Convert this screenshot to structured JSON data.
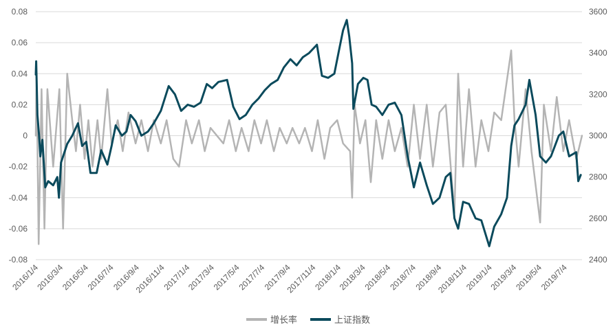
{
  "chart_data": {
    "type": "line",
    "title": "",
    "xlabel": "",
    "ylabel_left": "",
    "ylabel_right": "",
    "ylim_left": [
      -0.08,
      0.08
    ],
    "ylim_right": [
      2400,
      3600
    ],
    "yticks_left": [
      "0.08",
      "0.06",
      "0.04",
      "0.02",
      "0",
      "-0.02",
      "-0.04",
      "-0.06",
      "-0.08"
    ],
    "yticks_right": [
      "3600",
      "3400",
      "3200",
      "3000",
      "2800",
      "2600",
      "2400"
    ],
    "xticks": [
      "2016/1/4",
      "2016/3/4",
      "2016/5/4",
      "2016/7/4",
      "2016/9/4",
      "2016/11/4",
      "2017/1/4",
      "2017/3/4",
      "2017/5/4",
      "2017/7/4",
      "2017/9/4",
      "2017/11/4",
      "2018/1/4",
      "2018/3/4",
      "2018/5/4",
      "2018/7/4",
      "2018/9/4",
      "2018/11/4",
      "2019/1/4",
      "2019/3/4",
      "2019/5/4",
      "2019/7/4"
    ],
    "grid": "horizontal",
    "legend_position": "bottom",
    "series": [
      {
        "name": "增长率",
        "axis": "left",
        "color": "#b4b4b4",
        "points": [
          [
            "2016/1/4",
            0.0
          ],
          [
            "2016/1/6",
            0.04
          ],
          [
            "2016/1/11",
            -0.07
          ],
          [
            "2016/1/18",
            0.03
          ],
          [
            "2016/1/25",
            -0.06
          ],
          [
            "2016/2/1",
            0.03
          ],
          [
            "2016/2/15",
            -0.02
          ],
          [
            "2016/3/1",
            0.03
          ],
          [
            "2016/3/10",
            -0.06
          ],
          [
            "2016/3/20",
            0.04
          ],
          [
            "2016/4/1",
            0.01
          ],
          [
            "2016/4/10",
            -0.01
          ],
          [
            "2016/4/20",
            0.02
          ],
          [
            "2016/5/1",
            -0.015
          ],
          [
            "2016/5/10",
            0.01
          ],
          [
            "2016/5/20",
            -0.02
          ],
          [
            "2016/6/1",
            0.01
          ],
          [
            "2016/6/10",
            -0.015
          ],
          [
            "2016/6/25",
            0.03
          ],
          [
            "2016/7/5",
            -0.005
          ],
          [
            "2016/7/20",
            0.01
          ],
          [
            "2016/8/1",
            -0.01
          ],
          [
            "2016/8/15",
            0.015
          ],
          [
            "2016/9/1",
            -0.005
          ],
          [
            "2016/9/15",
            0.01
          ],
          [
            "2016/10/1",
            -0.01
          ],
          [
            "2016/10/15",
            0.01
          ],
          [
            "2016/11/1",
            -0.005
          ],
          [
            "2016/11/15",
            0.01
          ],
          [
            "2016/12/1",
            -0.015
          ],
          [
            "2016/12/15",
            -0.02
          ],
          [
            "2017/1/1",
            0.01
          ],
          [
            "2017/1/15",
            -0.005
          ],
          [
            "2017/2/1",
            0.01
          ],
          [
            "2017/2/15",
            -0.01
          ],
          [
            "2017/3/1",
            0.005
          ],
          [
            "2017/4/1",
            -0.005
          ],
          [
            "2017/4/15",
            0.01
          ],
          [
            "2017/5/1",
            -0.01
          ],
          [
            "2017/5/15",
            0.005
          ],
          [
            "2017/6/1",
            -0.01
          ],
          [
            "2017/6/15",
            0.01
          ],
          [
            "2017/7/1",
            -0.005
          ],
          [
            "2017/7/15",
            0.01
          ],
          [
            "2017/8/1",
            -0.01
          ],
          [
            "2017/8/15",
            0.005
          ],
          [
            "2017/9/1",
            -0.005
          ],
          [
            "2017/9/15",
            0.005
          ],
          [
            "2017/10/1",
            -0.005
          ],
          [
            "2017/10/15",
            0.005
          ],
          [
            "2017/11/1",
            -0.01
          ],
          [
            "2017/11/15",
            0.01
          ],
          [
            "2017/12/1",
            -0.015
          ],
          [
            "2017/12/15",
            0.005
          ],
          [
            "2018/1/1",
            0.01
          ],
          [
            "2018/1/15",
            -0.005
          ],
          [
            "2018/2/1",
            -0.01
          ],
          [
            "2018/2/6",
            -0.04
          ],
          [
            "2018/2/12",
            0.02
          ],
          [
            "2018/2/25",
            -0.005
          ],
          [
            "2018/3/10",
            0.01
          ],
          [
            "2018/3/23",
            -0.03
          ],
          [
            "2018/4/5",
            0.01
          ],
          [
            "2018/4/20",
            -0.015
          ],
          [
            "2018/5/5",
            0.01
          ],
          [
            "2018/5/20",
            -0.01
          ],
          [
            "2018/6/5",
            0.005
          ],
          [
            "2018/6/20",
            -0.02
          ],
          [
            "2018/7/5",
            0.02
          ],
          [
            "2018/7/20",
            -0.015
          ],
          [
            "2018/8/5",
            0.02
          ],
          [
            "2018/8/20",
            -0.02
          ],
          [
            "2018/9/5",
            0.015
          ],
          [
            "2018/9/20",
            0.02
          ],
          [
            "2018/10/11",
            -0.05
          ],
          [
            "2018/10/20",
            0.04
          ],
          [
            "2018/11/1",
            -0.02
          ],
          [
            "2018/11/15",
            0.03
          ],
          [
            "2018/12/1",
            -0.02
          ],
          [
            "2018/12/15",
            0.01
          ],
          [
            "2019/1/1",
            -0.01
          ],
          [
            "2019/1/15",
            0.015
          ],
          [
            "2019/2/1",
            0.01
          ],
          [
            "2019/2/25",
            0.055
          ],
          [
            "2019/3/5",
            0.01
          ],
          [
            "2019/3/15",
            -0.02
          ],
          [
            "2019/4/1",
            0.03
          ],
          [
            "2019/4/15",
            -0.01
          ],
          [
            "2019/5/6",
            -0.056
          ],
          [
            "2019/5/15",
            0.02
          ],
          [
            "2019/6/1",
            -0.01
          ],
          [
            "2019/6/15",
            0.025
          ],
          [
            "2019/7/1",
            -0.01
          ],
          [
            "2019/7/15",
            0.01
          ],
          [
            "2019/8/1",
            -0.015
          ],
          [
            "2019/8/6",
            -0.01
          ],
          [
            "2019/8/15",
            0.0
          ]
        ]
      },
      {
        "name": "上证指数",
        "axis": "right",
        "color": "#0b4a5c",
        "points": [
          [
            "2016/1/4",
            3296
          ],
          [
            "2016/1/5",
            3360
          ],
          [
            "2016/1/8",
            3100
          ],
          [
            "2016/1/12",
            3000
          ],
          [
            "2016/1/15",
            2900
          ],
          [
            "2016/1/20",
            2980
          ],
          [
            "2016/1/27",
            2750
          ],
          [
            "2016/2/3",
            2780
          ],
          [
            "2016/2/15",
            2760
          ],
          [
            "2016/2/25",
            2800
          ],
          [
            "2016/2/29",
            2700
          ],
          [
            "2016/3/5",
            2870
          ],
          [
            "2016/3/20",
            2960
          ],
          [
            "2016/4/1",
            3000
          ],
          [
            "2016/4/15",
            3060
          ],
          [
            "2016/4/25",
            2950
          ],
          [
            "2016/5/5",
            2970
          ],
          [
            "2016/5/15",
            2820
          ],
          [
            "2016/5/30",
            2820
          ],
          [
            "2016/6/10",
            2930
          ],
          [
            "2016/6/25",
            2860
          ],
          [
            "2016/7/5",
            2950
          ],
          [
            "2016/7/15",
            3050
          ],
          [
            "2016/7/30",
            3000
          ],
          [
            "2016/8/10",
            3020
          ],
          [
            "2016/8/20",
            3100
          ],
          [
            "2016/9/1",
            3070
          ],
          [
            "2016/9/15",
            3000
          ],
          [
            "2016/10/1",
            3020
          ],
          [
            "2016/10/15",
            3060
          ],
          [
            "2016/11/1",
            3120
          ],
          [
            "2016/11/20",
            3240
          ],
          [
            "2016/12/5",
            3200
          ],
          [
            "2016/12/20",
            3120
          ],
          [
            "2017/1/5",
            3150
          ],
          [
            "2017/1/20",
            3140
          ],
          [
            "2017/2/5",
            3160
          ],
          [
            "2017/2/20",
            3250
          ],
          [
            "2017/3/5",
            3230
          ],
          [
            "2017/3/20",
            3260
          ],
          [
            "2017/4/10",
            3270
          ],
          [
            "2017/4/25",
            3140
          ],
          [
            "2017/5/10",
            3080
          ],
          [
            "2017/5/25",
            3100
          ],
          [
            "2017/6/10",
            3150
          ],
          [
            "2017/6/25",
            3180
          ],
          [
            "2017/7/10",
            3220
          ],
          [
            "2017/7/25",
            3250
          ],
          [
            "2017/8/10",
            3270
          ],
          [
            "2017/8/25",
            3330
          ],
          [
            "2017/9/10",
            3370
          ],
          [
            "2017/9/25",
            3340
          ],
          [
            "2017/10/10",
            3380
          ],
          [
            "2017/10/25",
            3400
          ],
          [
            "2017/11/13",
            3440
          ],
          [
            "2017/11/25",
            3290
          ],
          [
            "2017/12/10",
            3280
          ],
          [
            "2017/12/25",
            3300
          ],
          [
            "2018/1/5",
            3410
          ],
          [
            "2018/1/15",
            3510
          ],
          [
            "2018/1/24",
            3560
          ],
          [
            "2018/1/30",
            3480
          ],
          [
            "2018/2/6",
            3350
          ],
          [
            "2018/2/9",
            3130
          ],
          [
            "2018/2/20",
            3250
          ],
          [
            "2018/3/5",
            3280
          ],
          [
            "2018/3/15",
            3270
          ],
          [
            "2018/3/25",
            3150
          ],
          [
            "2018/4/5",
            3140
          ],
          [
            "2018/4/20",
            3100
          ],
          [
            "2018/5/5",
            3150
          ],
          [
            "2018/5/20",
            3160
          ],
          [
            "2018/6/5",
            3100
          ],
          [
            "2018/6/20",
            2900
          ],
          [
            "2018/7/5",
            2750
          ],
          [
            "2018/7/20",
            2870
          ],
          [
            "2018/8/5",
            2760
          ],
          [
            "2018/8/20",
            2670
          ],
          [
            "2018/9/5",
            2700
          ],
          [
            "2018/9/20",
            2800
          ],
          [
            "2018/10/1",
            2820
          ],
          [
            "2018/10/11",
            2600
          ],
          [
            "2018/10/20",
            2550
          ],
          [
            "2018/11/1",
            2680
          ],
          [
            "2018/11/15",
            2670
          ],
          [
            "2018/12/1",
            2600
          ],
          [
            "2018/12/15",
            2590
          ],
          [
            "2019/1/3",
            2465
          ],
          [
            "2019/1/15",
            2560
          ],
          [
            "2019/2/1",
            2620
          ],
          [
            "2019/2/15",
            2700
          ],
          [
            "2019/2/25",
            2950
          ],
          [
            "2019/3/5",
            3050
          ],
          [
            "2019/3/15",
            3080
          ],
          [
            "2019/4/1",
            3150
          ],
          [
            "2019/4/10",
            3270
          ],
          [
            "2019/4/25",
            3100
          ],
          [
            "2019/5/6",
            2900
          ],
          [
            "2019/5/20",
            2870
          ],
          [
            "2019/6/1",
            2900
          ],
          [
            "2019/6/20",
            3000
          ],
          [
            "2019/7/1",
            3020
          ],
          [
            "2019/7/15",
            2900
          ],
          [
            "2019/8/1",
            2920
          ],
          [
            "2019/8/6",
            2780
          ],
          [
            "2019/8/12",
            2810
          ]
        ]
      }
    ]
  }
}
